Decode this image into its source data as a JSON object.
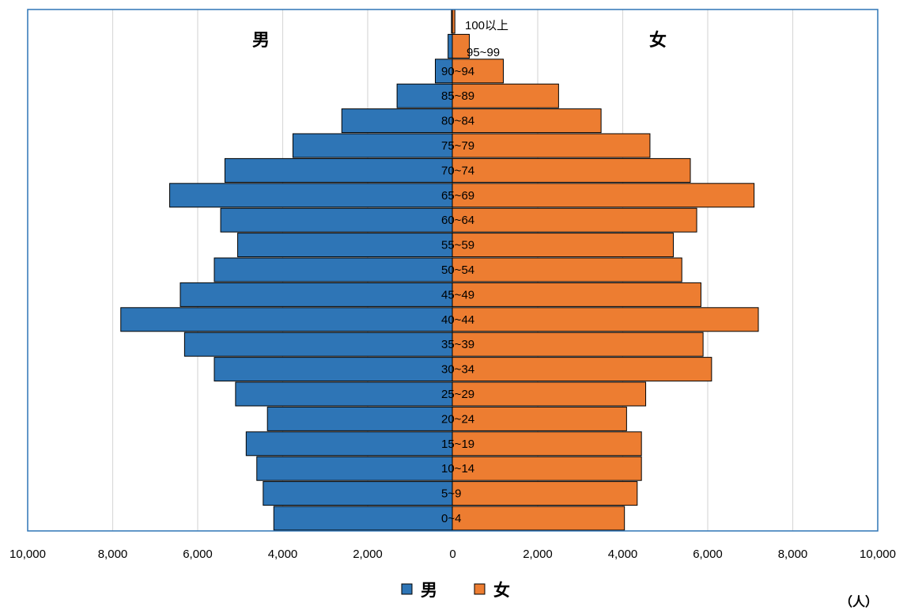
{
  "chart_data": {
    "type": "bar",
    "orientation": "horizontal",
    "layout": "population-pyramid",
    "side_labels": {
      "left": "男",
      "right": "女"
    },
    "unit": "（人）",
    "xlim": [
      -10000,
      10000
    ],
    "x_ticks": [
      "10,000",
      "8,000",
      "6,000",
      "4,000",
      "2,000",
      "0",
      "2,000",
      "4,000",
      "6,000",
      "8,000",
      "10,000"
    ],
    "grid": "vertical",
    "legend_position": "bottom",
    "categories": [
      "0~4",
      "5~9",
      "10~14",
      "15~19",
      "20~24",
      "25~29",
      "30~34",
      "35~39",
      "40~44",
      "45~49",
      "50~54",
      "55~59",
      "60~64",
      "65~69",
      "70~74",
      "75~79",
      "80~84",
      "85~89",
      "90~94",
      "95~99",
      "100以上"
    ],
    "series": [
      {
        "name": "男",
        "color": "#2E75B6",
        "values": [
          4200,
          4450,
          4600,
          4850,
          4350,
          5100,
          5600,
          6300,
          7800,
          6400,
          5600,
          5050,
          5450,
          6650,
          5350,
          3750,
          2600,
          1300,
          400,
          100,
          20
        ]
      },
      {
        "name": "女",
        "color": "#ED7D31",
        "values": [
          4050,
          4350,
          4450,
          4450,
          4100,
          4550,
          6100,
          5900,
          7200,
          5850,
          5400,
          5200,
          5750,
          7100,
          5600,
          4650,
          3500,
          2500,
          1200,
          400,
          60
        ]
      }
    ]
  }
}
